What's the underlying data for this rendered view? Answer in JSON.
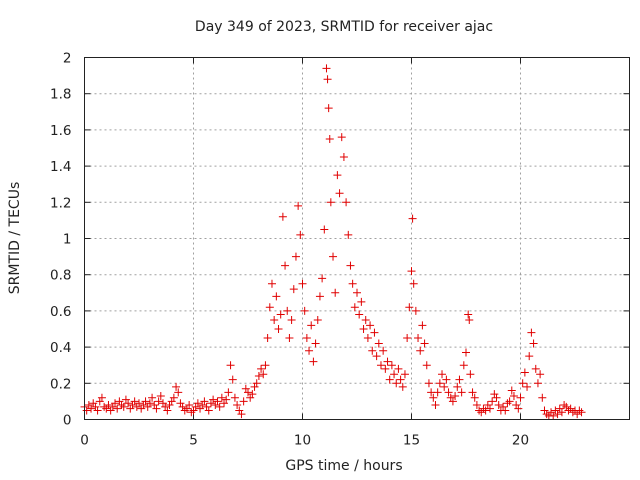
{
  "chart_data": {
    "type": "scatter",
    "title": "Day 349 of 2023, SRMTID for receiver ajac",
    "xlabel": "GPS time / hours",
    "ylabel": "SRMTID / TECUs",
    "xlim": [
      0,
      25
    ],
    "ylim": [
      0,
      2
    ],
    "xticks": [
      0,
      5,
      10,
      15,
      20
    ],
    "xtick_labels": [
      "0",
      "5",
      "10",
      "15",
      "20"
    ],
    "yticks": [
      0,
      0.2,
      0.4,
      0.6,
      0.8,
      1,
      1.2,
      1.4,
      1.6,
      1.8,
      2
    ],
    "ytick_labels": [
      "0",
      "0.2",
      "0.4",
      "0.6",
      "0.8",
      "1",
      "1.2",
      "1.4",
      "1.6",
      "1.8",
      "2"
    ],
    "grid": true,
    "marker": "+",
    "color": "#e00000",
    "series": [
      {
        "name": "SRMTID",
        "points": [
          [
            0.0,
            0.07
          ],
          [
            0.1,
            0.05
          ],
          [
            0.2,
            0.08
          ],
          [
            0.3,
            0.06
          ],
          [
            0.4,
            0.09
          ],
          [
            0.5,
            0.07
          ],
          [
            0.6,
            0.05
          ],
          [
            0.7,
            0.1
          ],
          [
            0.8,
            0.12
          ],
          [
            0.9,
            0.07
          ],
          [
            1.0,
            0.06
          ],
          [
            1.1,
            0.08
          ],
          [
            1.2,
            0.05
          ],
          [
            1.3,
            0.07
          ],
          [
            1.4,
            0.09
          ],
          [
            1.5,
            0.06
          ],
          [
            1.6,
            0.1
          ],
          [
            1.7,
            0.08
          ],
          [
            1.8,
            0.07
          ],
          [
            1.9,
            0.11
          ],
          [
            2.0,
            0.09
          ],
          [
            2.1,
            0.06
          ],
          [
            2.2,
            0.08
          ],
          [
            2.3,
            0.1
          ],
          [
            2.4,
            0.07
          ],
          [
            2.5,
            0.09
          ],
          [
            2.6,
            0.06
          ],
          [
            2.7,
            0.08
          ],
          [
            2.8,
            0.1
          ],
          [
            2.9,
            0.07
          ],
          [
            3.0,
            0.09
          ],
          [
            3.1,
            0.12
          ],
          [
            3.2,
            0.08
          ],
          [
            3.3,
            0.06
          ],
          [
            3.4,
            0.1
          ],
          [
            3.5,
            0.13
          ],
          [
            3.6,
            0.09
          ],
          [
            3.7,
            0.07
          ],
          [
            3.8,
            0.05
          ],
          [
            3.9,
            0.08
          ],
          [
            4.0,
            0.1
          ],
          [
            4.1,
            0.12
          ],
          [
            4.2,
            0.18
          ],
          [
            4.3,
            0.15
          ],
          [
            4.4,
            0.09
          ],
          [
            4.5,
            0.07
          ],
          [
            4.6,
            0.05
          ],
          [
            4.7,
            0.06
          ],
          [
            4.8,
            0.08
          ],
          [
            4.9,
            0.04
          ],
          [
            5.0,
            0.05
          ],
          [
            5.1,
            0.07
          ],
          [
            5.2,
            0.09
          ],
          [
            5.3,
            0.06
          ],
          [
            5.4,
            0.08
          ],
          [
            5.5,
            0.1
          ],
          [
            5.6,
            0.07
          ],
          [
            5.7,
            0.05
          ],
          [
            5.8,
            0.09
          ],
          [
            5.9,
            0.11
          ],
          [
            6.0,
            0.08
          ],
          [
            6.1,
            0.1
          ],
          [
            6.2,
            0.07
          ],
          [
            6.3,
            0.12
          ],
          [
            6.4,
            0.09
          ],
          [
            6.5,
            0.11
          ],
          [
            6.6,
            0.15
          ],
          [
            6.7,
            0.3
          ],
          [
            6.8,
            0.22
          ],
          [
            6.9,
            0.12
          ],
          [
            7.0,
            0.08
          ],
          [
            7.1,
            0.05
          ],
          [
            7.2,
            0.03
          ],
          [
            7.3,
            0.1
          ],
          [
            7.4,
            0.17
          ],
          [
            7.5,
            0.15
          ],
          [
            7.6,
            0.12
          ],
          [
            7.7,
            0.14
          ],
          [
            7.8,
            0.18
          ],
          [
            7.9,
            0.2
          ],
          [
            8.0,
            0.24
          ],
          [
            8.1,
            0.28
          ],
          [
            8.2,
            0.25
          ],
          [
            8.3,
            0.3
          ],
          [
            8.4,
            0.45
          ],
          [
            8.5,
            0.62
          ],
          [
            8.6,
            0.75
          ],
          [
            8.7,
            0.55
          ],
          [
            8.8,
            0.68
          ],
          [
            8.9,
            0.5
          ],
          [
            9.0,
            0.58
          ],
          [
            9.1,
            1.12
          ],
          [
            9.2,
            0.85
          ],
          [
            9.3,
            0.6
          ],
          [
            9.4,
            0.45
          ],
          [
            9.5,
            0.55
          ],
          [
            9.6,
            0.72
          ],
          [
            9.7,
            0.9
          ],
          [
            9.8,
            1.18
          ],
          [
            9.9,
            1.02
          ],
          [
            10.0,
            0.75
          ],
          [
            10.1,
            0.6
          ],
          [
            10.2,
            0.45
          ],
          [
            10.3,
            0.38
          ],
          [
            10.4,
            0.52
          ],
          [
            10.5,
            0.32
          ],
          [
            10.6,
            0.42
          ],
          [
            10.7,
            0.55
          ],
          [
            10.8,
            0.68
          ],
          [
            10.9,
            0.78
          ],
          [
            11.0,
            1.05
          ],
          [
            11.1,
            1.94
          ],
          [
            11.15,
            1.88
          ],
          [
            11.2,
            1.72
          ],
          [
            11.25,
            1.55
          ],
          [
            11.3,
            1.2
          ],
          [
            11.4,
            0.9
          ],
          [
            11.5,
            0.7
          ],
          [
            11.6,
            1.35
          ],
          [
            11.7,
            1.25
          ],
          [
            11.8,
            1.56
          ],
          [
            11.9,
            1.45
          ],
          [
            12.0,
            1.2
          ],
          [
            12.1,
            1.02
          ],
          [
            12.2,
            0.85
          ],
          [
            12.3,
            0.75
          ],
          [
            12.4,
            0.62
          ],
          [
            12.5,
            0.7
          ],
          [
            12.6,
            0.58
          ],
          [
            12.7,
            0.65
          ],
          [
            12.8,
            0.5
          ],
          [
            12.9,
            0.55
          ],
          [
            13.0,
            0.45
          ],
          [
            13.1,
            0.52
          ],
          [
            13.2,
            0.38
          ],
          [
            13.3,
            0.48
          ],
          [
            13.4,
            0.35
          ],
          [
            13.5,
            0.42
          ],
          [
            13.6,
            0.3
          ],
          [
            13.7,
            0.38
          ],
          [
            13.8,
            0.28
          ],
          [
            13.9,
            0.32
          ],
          [
            14.0,
            0.22
          ],
          [
            14.1,
            0.3
          ],
          [
            14.2,
            0.25
          ],
          [
            14.3,
            0.2
          ],
          [
            14.4,
            0.28
          ],
          [
            14.5,
            0.22
          ],
          [
            14.6,
            0.18
          ],
          [
            14.7,
            0.25
          ],
          [
            14.8,
            0.45
          ],
          [
            14.9,
            0.62
          ],
          [
            15.0,
            0.82
          ],
          [
            15.05,
            1.11
          ],
          [
            15.1,
            0.75
          ],
          [
            15.2,
            0.6
          ],
          [
            15.3,
            0.45
          ],
          [
            15.4,
            0.38
          ],
          [
            15.5,
            0.52
          ],
          [
            15.6,
            0.42
          ],
          [
            15.7,
            0.3
          ],
          [
            15.8,
            0.2
          ],
          [
            15.9,
            0.15
          ],
          [
            16.0,
            0.12
          ],
          [
            16.1,
            0.08
          ],
          [
            16.2,
            0.15
          ],
          [
            16.3,
            0.2
          ],
          [
            16.4,
            0.25
          ],
          [
            16.5,
            0.18
          ],
          [
            16.6,
            0.22
          ],
          [
            16.7,
            0.15
          ],
          [
            16.8,
            0.12
          ],
          [
            16.9,
            0.1
          ],
          [
            17.0,
            0.13
          ],
          [
            17.1,
            0.18
          ],
          [
            17.2,
            0.22
          ],
          [
            17.3,
            0.15
          ],
          [
            17.4,
            0.3
          ],
          [
            17.5,
            0.37
          ],
          [
            17.6,
            0.58
          ],
          [
            17.65,
            0.55
          ],
          [
            17.7,
            0.25
          ],
          [
            17.8,
            0.15
          ],
          [
            17.9,
            0.12
          ],
          [
            18.0,
            0.08
          ],
          [
            18.1,
            0.05
          ],
          [
            18.2,
            0.04
          ],
          [
            18.3,
            0.06
          ],
          [
            18.4,
            0.05
          ],
          [
            18.5,
            0.08
          ],
          [
            18.6,
            0.06
          ],
          [
            18.7,
            0.1
          ],
          [
            18.8,
            0.14
          ],
          [
            18.9,
            0.12
          ],
          [
            19.0,
            0.08
          ],
          [
            19.1,
            0.05
          ],
          [
            19.2,
            0.07
          ],
          [
            19.3,
            0.05
          ],
          [
            19.4,
            0.09
          ],
          [
            19.5,
            0.1
          ],
          [
            19.6,
            0.16
          ],
          [
            19.7,
            0.13
          ],
          [
            19.8,
            0.08
          ],
          [
            19.9,
            0.06
          ],
          [
            20.0,
            0.12
          ],
          [
            20.1,
            0.2
          ],
          [
            20.2,
            0.26
          ],
          [
            20.3,
            0.18
          ],
          [
            20.4,
            0.35
          ],
          [
            20.5,
            0.48
          ],
          [
            20.6,
            0.42
          ],
          [
            20.7,
            0.28
          ],
          [
            20.8,
            0.2
          ],
          [
            20.9,
            0.25
          ],
          [
            21.0,
            0.12
          ],
          [
            21.1,
            0.05
          ],
          [
            21.2,
            0.03
          ],
          [
            21.3,
            0.02
          ],
          [
            21.4,
            0.04
          ],
          [
            21.5,
            0.02
          ],
          [
            21.6,
            0.05
          ],
          [
            21.7,
            0.03
          ],
          [
            21.8,
            0.06
          ],
          [
            21.9,
            0.04
          ],
          [
            22.0,
            0.08
          ],
          [
            22.1,
            0.07
          ],
          [
            22.2,
            0.05
          ],
          [
            22.3,
            0.06
          ],
          [
            22.4,
            0.04
          ],
          [
            22.5,
            0.05
          ],
          [
            22.6,
            0.03
          ],
          [
            22.7,
            0.05
          ],
          [
            22.8,
            0.04
          ]
        ]
      }
    ]
  }
}
